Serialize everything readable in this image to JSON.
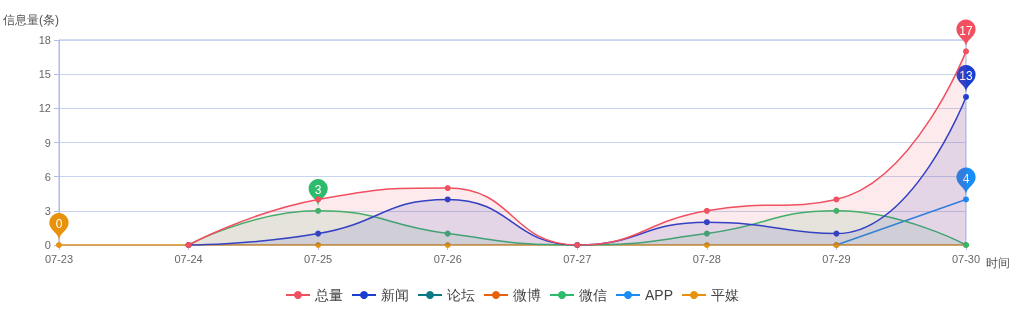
{
  "chart_data": {
    "type": "line",
    "xlabel": "时间",
    "ylabel": "信息量(条)",
    "categories": [
      "07-23",
      "07-24",
      "07-25",
      "07-26",
      "07-27",
      "07-28",
      "07-29",
      "07-30"
    ],
    "ylim": [
      0,
      18
    ],
    "yticks": [
      0,
      3,
      6,
      9,
      12,
      15,
      18
    ],
    "grid": "y",
    "legend": "bottom",
    "marker": "circle",
    "series": [
      {
        "name": "总量",
        "type": "area",
        "color": "#f0505f",
        "values": [
          null,
          0,
          4,
          5,
          0,
          3,
          4,
          17
        ],
        "value_labels": [
          null,
          null,
          null,
          null,
          null,
          null,
          null,
          "17"
        ]
      },
      {
        "name": "新闻",
        "type": "area",
        "color": "#1a3fd0",
        "values": [
          null,
          0,
          1,
          4,
          0,
          2,
          1,
          13
        ],
        "value_labels": [
          null,
          null,
          null,
          null,
          null,
          null,
          null,
          "13"
        ]
      },
      {
        "name": "论坛",
        "color": "#0b7a85",
        "values": [
          null,
          null,
          null,
          null,
          null,
          null,
          null,
          null
        ]
      },
      {
        "name": "微博",
        "color": "#e8620e",
        "values": [
          null,
          null,
          null,
          null,
          null,
          null,
          null,
          null
        ]
      },
      {
        "name": "微信",
        "type": "area",
        "color": "#2dbb6c",
        "values": [
          null,
          0,
          3,
          1,
          0,
          1,
          3,
          0
        ],
        "value_labels": [
          null,
          null,
          "3",
          null,
          null,
          null,
          null,
          null
        ]
      },
      {
        "name": "APP",
        "color": "#1a8cf5",
        "values": [
          null,
          null,
          null,
          null,
          null,
          null,
          0,
          4
        ],
        "value_labels": [
          null,
          null,
          null,
          null,
          null,
          null,
          null,
          "4"
        ]
      },
      {
        "name": "平媒",
        "color": "#e8920b",
        "values": [
          0,
          0,
          0,
          0,
          0,
          0,
          0,
          0
        ],
        "value_labels": [
          "0",
          null,
          null,
          null,
          null,
          null,
          null,
          null
        ]
      }
    ]
  }
}
